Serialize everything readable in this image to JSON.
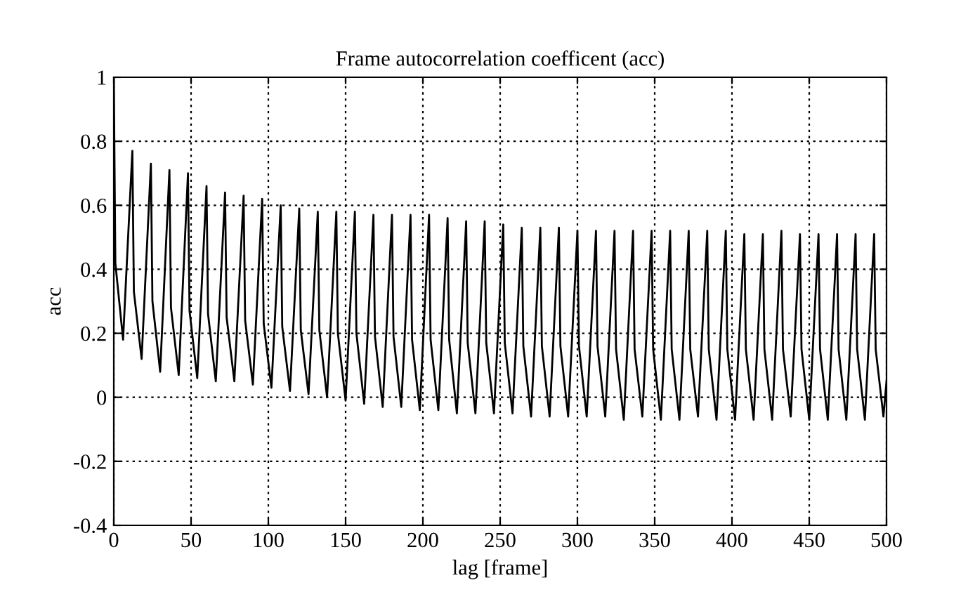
{
  "chart_data": {
    "type": "line",
    "title": "Frame autocorrelation coefficent (acc)",
    "xlabel": "lag [frame]",
    "ylabel": "acc",
    "x": [
      0,
      1,
      6,
      12,
      13,
      18,
      24,
      25,
      30,
      36,
      37,
      42,
      48,
      49,
      54,
      60,
      61,
      66,
      72,
      73,
      78,
      84,
      85,
      90,
      96,
      97,
      102,
      108,
      109,
      114,
      120,
      121,
      126,
      132,
      133,
      138,
      144,
      145,
      150,
      156,
      157,
      162,
      168,
      169,
      174,
      180,
      181,
      186,
      192,
      193,
      198,
      204,
      205,
      210,
      216,
      217,
      222,
      228,
      229,
      234,
      240,
      241,
      246,
      252,
      253,
      258,
      264,
      265,
      270,
      276,
      277,
      282,
      288,
      289,
      294,
      300,
      301,
      306,
      312,
      313,
      318,
      324,
      325,
      330,
      336,
      337,
      342,
      348,
      349,
      354,
      360,
      361,
      366,
      372,
      373,
      378,
      384,
      385,
      390,
      396,
      397,
      402,
      408,
      409,
      414,
      420,
      421,
      426,
      432,
      433,
      438,
      444,
      445,
      450,
      456,
      457,
      462,
      468,
      469,
      474,
      480,
      481,
      486,
      492,
      493,
      498,
      500
    ],
    "series": [
      {
        "color": "#000000",
        "values": [
          1,
          0.42,
          0.18,
          0.77,
          0.33,
          0.12,
          0.73,
          0.3,
          0.08,
          0.71,
          0.28,
          0.07,
          0.7,
          0.27,
          0.06,
          0.66,
          0.26,
          0.05,
          0.64,
          0.25,
          0.05,
          0.63,
          0.24,
          0.04,
          0.62,
          0.23,
          0.03,
          0.6,
          0.22,
          0.02,
          0.59,
          0.21,
          0.01,
          0.58,
          0.21,
          0,
          0.58,
          0.2,
          -0.01,
          0.58,
          0.2,
          -0.02,
          0.57,
          0.19,
          -0.03,
          0.57,
          0.19,
          -0.03,
          0.57,
          0.18,
          -0.04,
          0.57,
          0.18,
          -0.04,
          0.56,
          0.18,
          -0.05,
          0.55,
          0.17,
          -0.05,
          0.55,
          0.17,
          -0.05,
          0.54,
          0.17,
          -0.05,
          0.53,
          0.16,
          -0.06,
          0.53,
          0.16,
          -0.06,
          0.53,
          0.16,
          -0.06,
          0.52,
          0.16,
          -0.06,
          0.52,
          0.16,
          -0.06,
          0.52,
          0.15,
          -0.07,
          0.52,
          0.15,
          -0.06,
          0.52,
          0.15,
          -0.07,
          0.52,
          0.15,
          -0.07,
          0.52,
          0.15,
          -0.06,
          0.52,
          0.15,
          -0.07,
          0.52,
          0.15,
          -0.07,
          0.51,
          0.15,
          -0.07,
          0.51,
          0.15,
          -0.07,
          0.52,
          0.15,
          -0.06,
          0.51,
          0.15,
          -0.07,
          0.51,
          0.15,
          -0.07,
          0.51,
          0.15,
          -0.07,
          0.51,
          0.15,
          -0.07,
          0.51,
          0.15,
          -0.06,
          0.05
        ]
      }
    ],
    "xlim": [
      0,
      500
    ],
    "xticks": [
      0,
      50,
      100,
      150,
      200,
      250,
      300,
      350,
      400,
      450,
      500
    ],
    "ylim": [
      -0.4,
      1
    ],
    "yticks": [
      -0.4,
      -0.2,
      0,
      0.2,
      0.4,
      0.6,
      0.8,
      1
    ],
    "grid": true,
    "legend": false,
    "marker": "none",
    "line_style": "solid"
  }
}
